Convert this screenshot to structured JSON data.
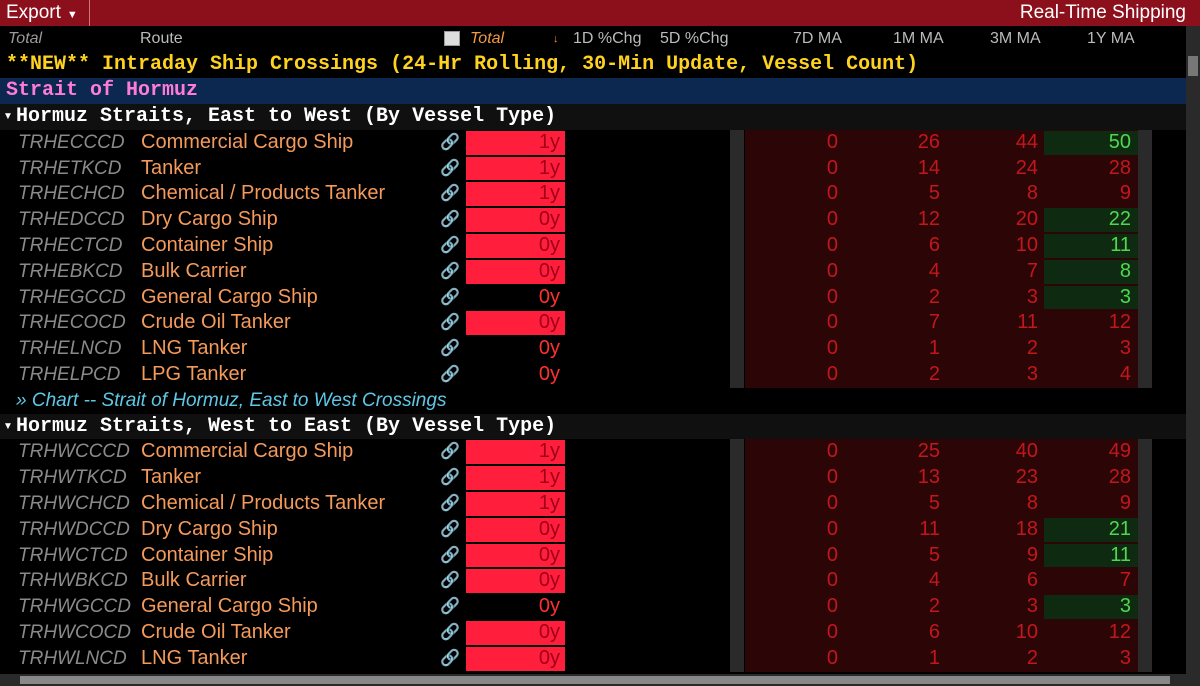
{
  "toolbar": {
    "export": "Export",
    "title": "Real-Time Shipping"
  },
  "columns": [
    "Total",
    "Route",
    "Total",
    "1D %Chg",
    "5D %Chg",
    "7D MA",
    "1M MA",
    "3M MA",
    "1Y MA"
  ],
  "banner": "**NEW** Intraday Ship Crossings (24-Hr Rolling, 30-Min Update, Vessel Count)",
  "section": "Strait of Hormuz",
  "groups": [
    {
      "title": "Hormuz Straits, East to West (By Vessel Type)",
      "rows": [
        {
          "ticker": "TRHECCCD",
          "route": "Commercial Cargo Ship",
          "total": "1y",
          "total_highlight": true,
          "ma7": 0,
          "ma1m": 26,
          "ma3m": 44,
          "ma1y": 50,
          "ma1y_up": true
        },
        {
          "ticker": "TRHETKCD",
          "route": "Tanker",
          "total": "1y",
          "total_highlight": true,
          "ma7": 0,
          "ma1m": 14,
          "ma3m": 24,
          "ma1y": 28,
          "ma1y_up": false
        },
        {
          "ticker": "TRHECHCD",
          "route": "Chemical / Products Tanker",
          "total": "1y",
          "total_highlight": true,
          "ma7": 0,
          "ma1m": 5,
          "ma3m": 8,
          "ma1y": 9,
          "ma1y_up": false
        },
        {
          "ticker": "TRHEDCCD",
          "route": "Dry Cargo Ship",
          "total": "0y",
          "total_highlight": true,
          "ma7": 0,
          "ma1m": 12,
          "ma3m": 20,
          "ma1y": 22,
          "ma1y_up": true
        },
        {
          "ticker": "TRHECTCD",
          "route": "Container Ship",
          "total": "0y",
          "total_highlight": true,
          "ma7": 0,
          "ma1m": 6,
          "ma3m": 10,
          "ma1y": 11,
          "ma1y_up": true
        },
        {
          "ticker": "TRHEBKCD",
          "route": "Bulk Carrier",
          "total": "0y",
          "total_highlight": true,
          "ma7": 0,
          "ma1m": 4,
          "ma3m": 7,
          "ma1y": 8,
          "ma1y_up": true
        },
        {
          "ticker": "TRHEGCCD",
          "route": "General Cargo Ship",
          "total": "0y",
          "total_highlight": false,
          "ma7": 0,
          "ma1m": 2,
          "ma3m": 3,
          "ma1y": 3,
          "ma1y_up": true
        },
        {
          "ticker": "TRHECOCD",
          "route": "Crude Oil Tanker",
          "total": "0y",
          "total_highlight": true,
          "ma7": 0,
          "ma1m": 7,
          "ma3m": 11,
          "ma1y": 12,
          "ma1y_up": false
        },
        {
          "ticker": "TRHELNCD",
          "route": "LNG Tanker",
          "total": "0y",
          "total_highlight": false,
          "ma7": 0,
          "ma1m": 1,
          "ma3m": 2,
          "ma1y": 3,
          "ma1y_up": false
        },
        {
          "ticker": "TRHELPCD",
          "route": "LPG Tanker",
          "total": "0y",
          "total_highlight": false,
          "ma7": 0,
          "ma1m": 2,
          "ma3m": 3,
          "ma1y": 4,
          "ma1y_up": false
        }
      ],
      "link": "» Chart -- Strait of Hormuz, East to West Crossings"
    },
    {
      "title": "Hormuz Straits, West to East (By Vessel Type)",
      "rows": [
        {
          "ticker": "TRHWCCCD",
          "route": "Commercial Cargo Ship",
          "total": "1y",
          "total_highlight": true,
          "ma7": 0,
          "ma1m": 25,
          "ma3m": 40,
          "ma1y": 49,
          "ma1y_up": false
        },
        {
          "ticker": "TRHWTKCD",
          "route": "Tanker",
          "total": "1y",
          "total_highlight": true,
          "ma7": 0,
          "ma1m": 13,
          "ma3m": 23,
          "ma1y": 28,
          "ma1y_up": false
        },
        {
          "ticker": "TRHWCHCD",
          "route": "Chemical / Products Tanker",
          "total": "1y",
          "total_highlight": true,
          "ma7": 0,
          "ma1m": 5,
          "ma3m": 8,
          "ma1y": 9,
          "ma1y_up": false
        },
        {
          "ticker": "TRHWDCCD",
          "route": "Dry Cargo Ship",
          "total": "0y",
          "total_highlight": true,
          "ma7": 0,
          "ma1m": 11,
          "ma3m": 18,
          "ma1y": 21,
          "ma1y_up": true
        },
        {
          "ticker": "TRHWCTCD",
          "route": "Container Ship",
          "total": "0y",
          "total_highlight": true,
          "ma7": 0,
          "ma1m": 5,
          "ma3m": 9,
          "ma1y": 11,
          "ma1y_up": true
        },
        {
          "ticker": "TRHWBKCD",
          "route": "Bulk Carrier",
          "total": "0y",
          "total_highlight": true,
          "ma7": 0,
          "ma1m": 4,
          "ma3m": 6,
          "ma1y": 7,
          "ma1y_up": false
        },
        {
          "ticker": "TRHWGCCD",
          "route": "General Cargo Ship",
          "total": "0y",
          "total_highlight": false,
          "ma7": 0,
          "ma1m": 2,
          "ma3m": 3,
          "ma1y": 3,
          "ma1y_up": true
        },
        {
          "ticker": "TRHWCOCD",
          "route": "Crude Oil Tanker",
          "total": "0y",
          "total_highlight": true,
          "ma7": 0,
          "ma1m": 6,
          "ma3m": 10,
          "ma1y": 12,
          "ma1y_up": false
        },
        {
          "ticker": "TRHWLNCD",
          "route": "LNG Tanker",
          "total": "0y",
          "total_highlight": true,
          "ma7": 0,
          "ma1m": 1,
          "ma3m": 2,
          "ma1y": 3,
          "ma1y_up": false
        }
      ]
    }
  ]
}
